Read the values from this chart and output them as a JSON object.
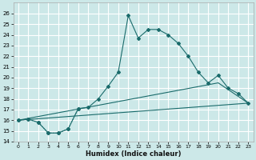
{
  "xlabel": "Humidex (Indice chaleur)",
  "bg_color": "#cce8e8",
  "grid_color": "#ffffff",
  "line_color": "#1a6b6b",
  "xlim": [
    -0.5,
    23.5
  ],
  "ylim": [
    14,
    27
  ],
  "xticks": [
    0,
    1,
    2,
    3,
    4,
    5,
    6,
    7,
    8,
    9,
    10,
    11,
    12,
    13,
    14,
    15,
    16,
    17,
    18,
    19,
    20,
    21,
    22,
    23
  ],
  "yticks": [
    14,
    15,
    16,
    17,
    18,
    19,
    20,
    21,
    22,
    23,
    24,
    25,
    26
  ],
  "main_x": [
    0,
    1,
    2,
    3,
    4,
    5,
    6,
    7,
    8,
    9,
    10,
    11,
    12,
    13,
    14,
    15,
    16,
    17,
    18,
    19,
    20,
    21,
    22,
    23
  ],
  "main_y": [
    16.0,
    16.1,
    15.8,
    14.8,
    14.8,
    15.2,
    17.1,
    17.2,
    18.0,
    19.2,
    20.5,
    25.8,
    23.7,
    24.5,
    24.5,
    24.0,
    23.2,
    22.0,
    20.5,
    19.5,
    20.2,
    19.0,
    18.5,
    17.6
  ],
  "dotted_x": [
    0,
    1,
    2,
    3,
    4,
    5,
    6
  ],
  "dotted_y": [
    16.0,
    16.1,
    15.8,
    14.8,
    14.8,
    15.2,
    17.1
  ],
  "line1_x": [
    0,
    23
  ],
  "line1_y": [
    16.0,
    17.6
  ],
  "line2_x": [
    0,
    20,
    23
  ],
  "line2_y": [
    16.0,
    19.5,
    17.6
  ]
}
